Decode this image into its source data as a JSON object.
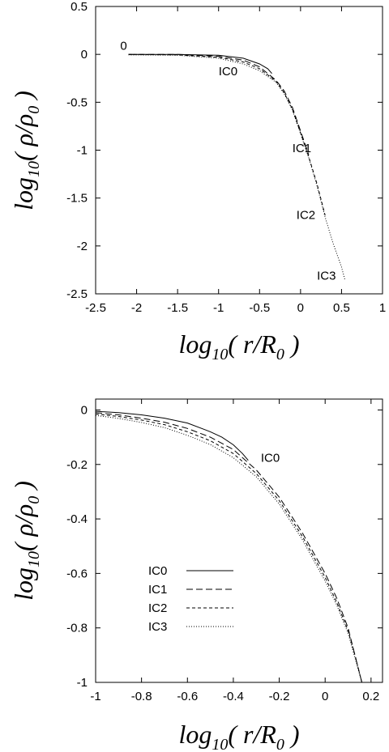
{
  "chart_data": [
    {
      "type": "line",
      "xlabel": "log10( r/R0 )",
      "ylabel": "log10( ρ/ρ0 )",
      "xlim": [
        -2.5,
        1
      ],
      "ylim": [
        -2.5,
        0.5
      ],
      "xticks": [
        "-2.5",
        "-2",
        "-1.5",
        "-1",
        "-0.5",
        "0",
        "0.5",
        "1"
      ],
      "yticks": [
        "0.5",
        "0",
        "-0.5",
        "-1",
        "-1.5",
        "-2",
        "-2.5"
      ],
      "annotations": [
        {
          "text": "0",
          "x": -2.2,
          "y": 0.05
        },
        {
          "text": "IC0",
          "x": -1.0,
          "y": -0.22
        },
        {
          "text": "IC1",
          "x": -0.1,
          "y": -1.02
        },
        {
          "text": "IC2",
          "x": -0.05,
          "y": -1.72
        },
        {
          "text": "IC3",
          "x": 0.2,
          "y": -2.35
        }
      ],
      "series": [
        {
          "name": "IC0",
          "dash": "",
          "points": [
            [
              -2.1,
              0.0
            ],
            [
              -1.5,
              0.0
            ],
            [
              -1.0,
              -0.01
            ],
            [
              -0.7,
              -0.04
            ],
            [
              -0.5,
              -0.1
            ],
            [
              -0.4,
              -0.15
            ],
            [
              -0.35,
              -0.2
            ]
          ]
        },
        {
          "name": "IC1",
          "dash": "8,4",
          "points": [
            [
              -2.1,
              0.0
            ],
            [
              -1.5,
              0.0
            ],
            [
              -1.0,
              -0.02
            ],
            [
              -0.7,
              -0.06
            ],
            [
              -0.5,
              -0.13
            ],
            [
              -0.3,
              -0.27
            ],
            [
              -0.2,
              -0.38
            ],
            [
              -0.1,
              -0.55
            ],
            [
              0.0,
              -0.8
            ],
            [
              0.1,
              -1.05
            ]
          ]
        },
        {
          "name": "IC2",
          "dash": "4,3",
          "points": [
            [
              -2.1,
              0.0
            ],
            [
              -1.5,
              -0.005
            ],
            [
              -1.0,
              -0.03
            ],
            [
              -0.7,
              -0.08
            ],
            [
              -0.5,
              -0.15
            ],
            [
              -0.3,
              -0.28
            ],
            [
              -0.2,
              -0.4
            ],
            [
              -0.1,
              -0.57
            ],
            [
              0.0,
              -0.82
            ],
            [
              0.1,
              -1.07
            ],
            [
              0.2,
              -1.35
            ],
            [
              0.3,
              -1.68
            ]
          ]
        },
        {
          "name": "IC3",
          "dash": "1,2",
          "points": [
            [
              -2.1,
              -0.005
            ],
            [
              -1.5,
              -0.01
            ],
            [
              -1.0,
              -0.04
            ],
            [
              -0.7,
              -0.1
            ],
            [
              -0.5,
              -0.17
            ],
            [
              -0.3,
              -0.29
            ],
            [
              -0.2,
              -0.41
            ],
            [
              -0.1,
              -0.58
            ],
            [
              0.0,
              -0.83
            ],
            [
              0.1,
              -1.08
            ],
            [
              0.2,
              -1.37
            ],
            [
              0.3,
              -1.7
            ],
            [
              0.4,
              -1.98
            ],
            [
              0.5,
              -2.22
            ],
            [
              0.54,
              -2.35
            ]
          ]
        }
      ]
    },
    {
      "type": "line",
      "xlabel": "log10( r/R0 )",
      "ylabel": "log10( ρ/ρ0 )",
      "xlim": [
        -1,
        0.25
      ],
      "ylim": [
        -1,
        0.04
      ],
      "xticks": [
        "-1",
        "-0.8",
        "-0.6",
        "-0.4",
        "-0.2",
        "0",
        "0.2"
      ],
      "yticks": [
        "0",
        "-0.2",
        "-0.4",
        "-0.6",
        "-0.8",
        "-1"
      ],
      "annotations": [
        {
          "text": "IC0",
          "x": -0.28,
          "y": -0.19
        }
      ],
      "legend": {
        "position": "lower-left",
        "entries": [
          "IC0",
          "IC1",
          "IC2",
          "IC3"
        ]
      },
      "series": [
        {
          "name": "IC0",
          "dash": "",
          "points": [
            [
              -1.0,
              -0.005
            ],
            [
              -0.9,
              -0.01
            ],
            [
              -0.8,
              -0.018
            ],
            [
              -0.7,
              -0.03
            ],
            [
              -0.6,
              -0.048
            ],
            [
              -0.5,
              -0.08
            ],
            [
              -0.45,
              -0.1
            ],
            [
              -0.4,
              -0.128
            ],
            [
              -0.36,
              -0.16
            ],
            [
              -0.335,
              -0.185
            ]
          ]
        },
        {
          "name": "IC1",
          "dash": "8,4",
          "points": [
            [
              -1.0,
              -0.01
            ],
            [
              -0.9,
              -0.018
            ],
            [
              -0.8,
              -0.03
            ],
            [
              -0.7,
              -0.045
            ],
            [
              -0.6,
              -0.068
            ],
            [
              -0.5,
              -0.1
            ],
            [
              -0.4,
              -0.145
            ],
            [
              -0.3,
              -0.22
            ],
            [
              -0.2,
              -0.32
            ],
            [
              -0.1,
              -0.45
            ],
            [
              0.0,
              -0.6
            ],
            [
              0.05,
              -0.69
            ],
            [
              0.1,
              -0.8
            ],
            [
              0.13,
              -0.9
            ],
            [
              0.16,
              -1.0
            ]
          ]
        },
        {
          "name": "IC2",
          "dash": "4,3",
          "points": [
            [
              -1.0,
              -0.015
            ],
            [
              -0.9,
              -0.024
            ],
            [
              -0.8,
              -0.037
            ],
            [
              -0.7,
              -0.054
            ],
            [
              -0.6,
              -0.08
            ],
            [
              -0.5,
              -0.113
            ],
            [
              -0.4,
              -0.16
            ],
            [
              -0.3,
              -0.233
            ],
            [
              -0.2,
              -0.333
            ],
            [
              -0.1,
              -0.463
            ],
            [
              0.0,
              -0.615
            ],
            [
              0.05,
              -0.705
            ],
            [
              0.1,
              -0.81
            ],
            [
              0.13,
              -0.9
            ],
            [
              0.16,
              -1.0
            ]
          ]
        },
        {
          "name": "IC3",
          "dash": "1,2",
          "points": [
            [
              -1.0,
              -0.02
            ],
            [
              -0.9,
              -0.031
            ],
            [
              -0.8,
              -0.046
            ],
            [
              -0.7,
              -0.065
            ],
            [
              -0.6,
              -0.093
            ],
            [
              -0.5,
              -0.127
            ],
            [
              -0.4,
              -0.175
            ],
            [
              -0.3,
              -0.245
            ],
            [
              -0.2,
              -0.345
            ],
            [
              -0.1,
              -0.475
            ],
            [
              0.0,
              -0.628
            ],
            [
              0.05,
              -0.715
            ],
            [
              0.1,
              -0.82
            ],
            [
              0.13,
              -0.91
            ],
            [
              0.16,
              -1.0
            ]
          ]
        }
      ]
    }
  ]
}
